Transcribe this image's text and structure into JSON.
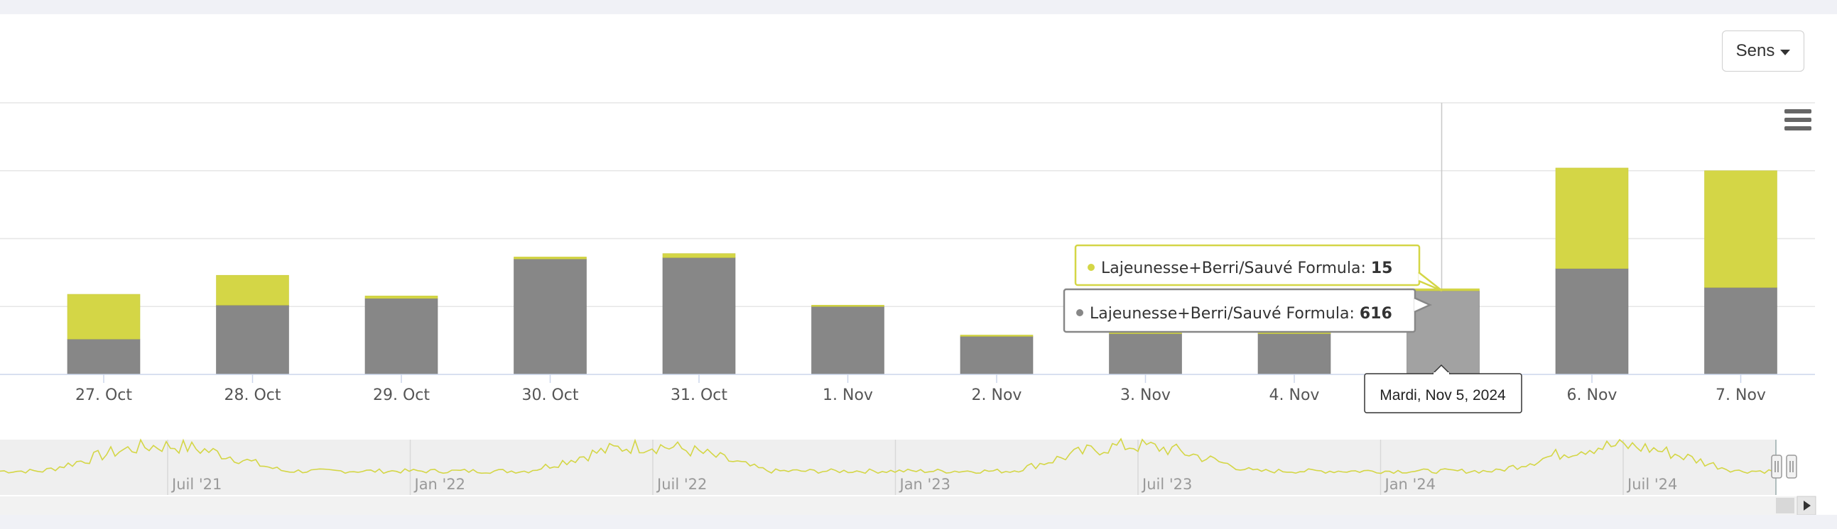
{
  "toolbar": {
    "sens_label": "Sens"
  },
  "colors": {
    "yellow": "#d4d646",
    "gray": "#878787",
    "gray_hover": "#a2a2a2",
    "nav_line": "#d4d646",
    "nav_bg": "#efefef"
  },
  "chart_data": {
    "type": "bar",
    "stacked": true,
    "categories": [
      "27. Oct",
      "28. Oct",
      "29. Oct",
      "30. Oct",
      "31. Oct",
      "1. Nov",
      "2. Nov",
      "3. Nov",
      "4. Nov",
      "5. Nov",
      "6. Nov",
      "7. Nov"
    ],
    "series": [
      {
        "name": "Lajeunesse+Berri/Sauvé Formula",
        "color": "#878787",
        "values": [
          260,
          510,
          560,
          850,
          860,
          500,
          280,
          300,
          300,
          616,
          780,
          640
        ]
      },
      {
        "name": "Lajeunesse+Berri/Sauvé Formula",
        "color": "#d4d646",
        "values": [
          330,
          220,
          18,
          15,
          30,
          10,
          10,
          12,
          15,
          15,
          740,
          860
        ]
      }
    ],
    "ylim": [
      0,
      2000
    ],
    "grid": true,
    "highlighted_index": 9,
    "tooltip": {
      "date": "Mardi, Nov 5, 2024",
      "label_yellow": "Lajeunesse+Berri/Sauvé Formula:",
      "value_yellow": "15",
      "label_gray": "Lajeunesse+Berri/Sauvé Formula:",
      "value_gray": "616"
    },
    "navigator": {
      "labels": [
        "Juil '21",
        "Jan '22",
        "Juil '22",
        "Jan '23",
        "Juil '23",
        "Jan '24",
        "Juil '24"
      ]
    }
  }
}
